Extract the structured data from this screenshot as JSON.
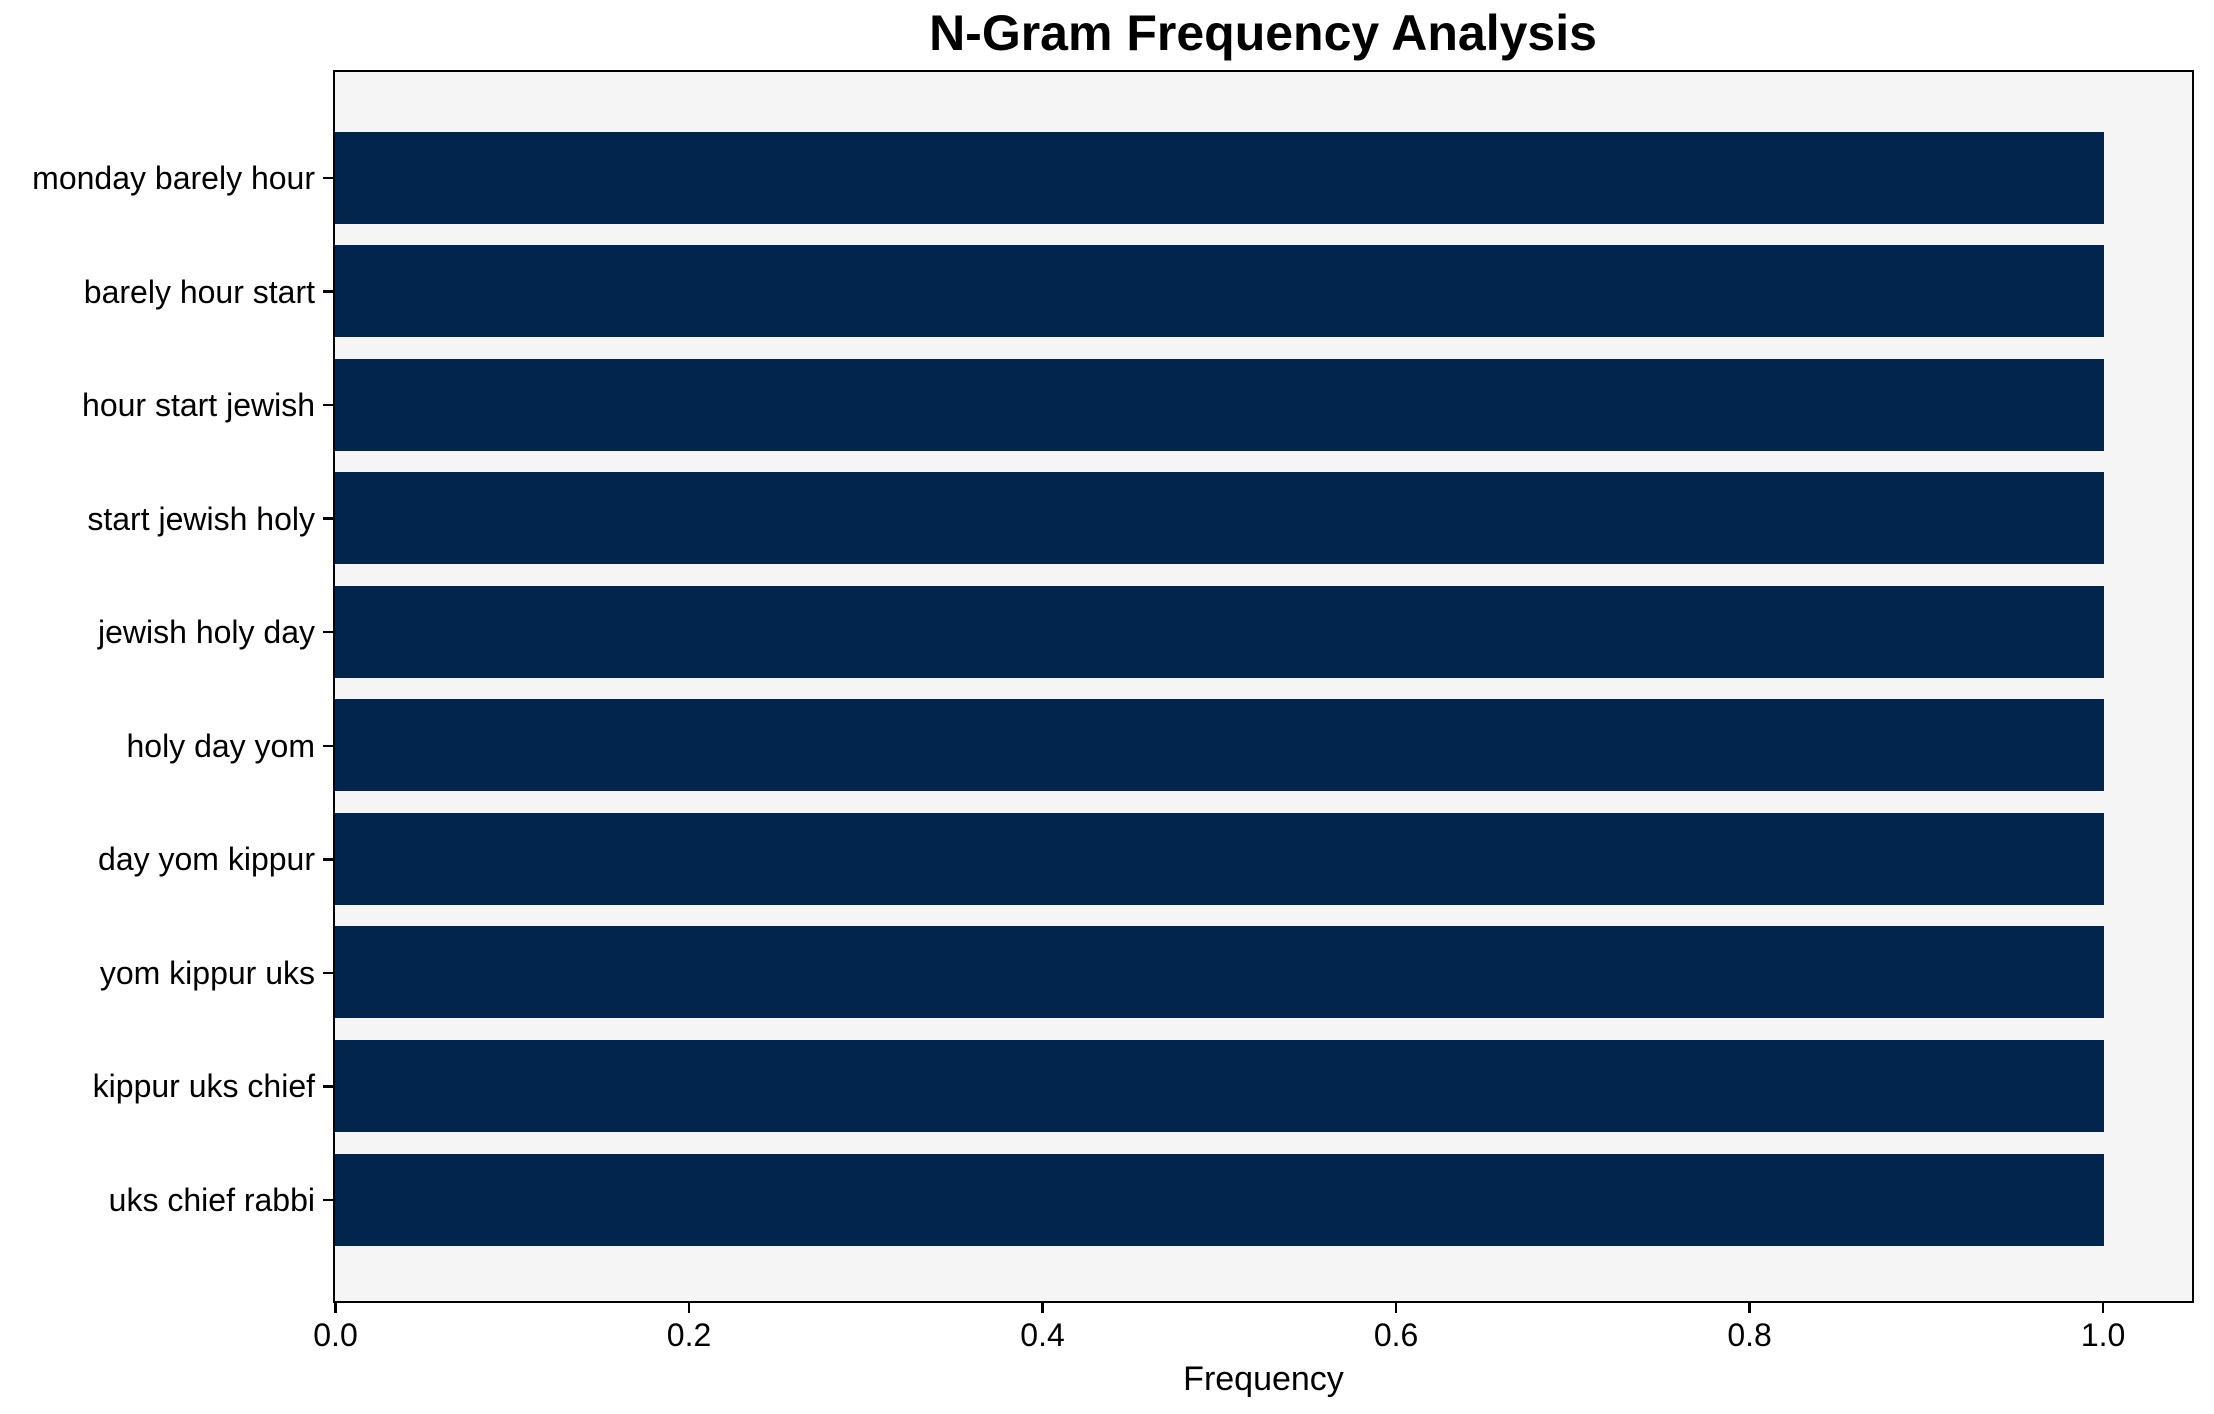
{
  "chart_data": {
    "type": "bar",
    "orientation": "horizontal",
    "title": "N-Gram Frequency Analysis",
    "categories": [
      "monday barely hour",
      "barely hour start",
      "hour start jewish",
      "start jewish holy",
      "jewish holy day",
      "holy day yom",
      "day yom kippur",
      "yom kippur uks",
      "kippur uks chief",
      "uks chief rabbi"
    ],
    "values": [
      1.0,
      1.0,
      1.0,
      1.0,
      1.0,
      1.0,
      1.0,
      1.0,
      1.0,
      1.0
    ],
    "xlabel": "Frequency",
    "ylabel": "",
    "xtick_values": [
      0.0,
      0.2,
      0.4,
      0.6,
      0.8,
      1.0
    ],
    "xtick_labels": [
      "0.0",
      "0.2",
      "0.4",
      "0.6",
      "0.8",
      "1.0"
    ],
    "xlim": [
      0,
      1.05
    ],
    "grid": false,
    "legend_position": "none",
    "colors": {
      "bar": "#02254e",
      "plot_background": "#f5f5f5",
      "figure_background": "#ffffff",
      "spine": "#000000",
      "text": "#000000"
    }
  }
}
